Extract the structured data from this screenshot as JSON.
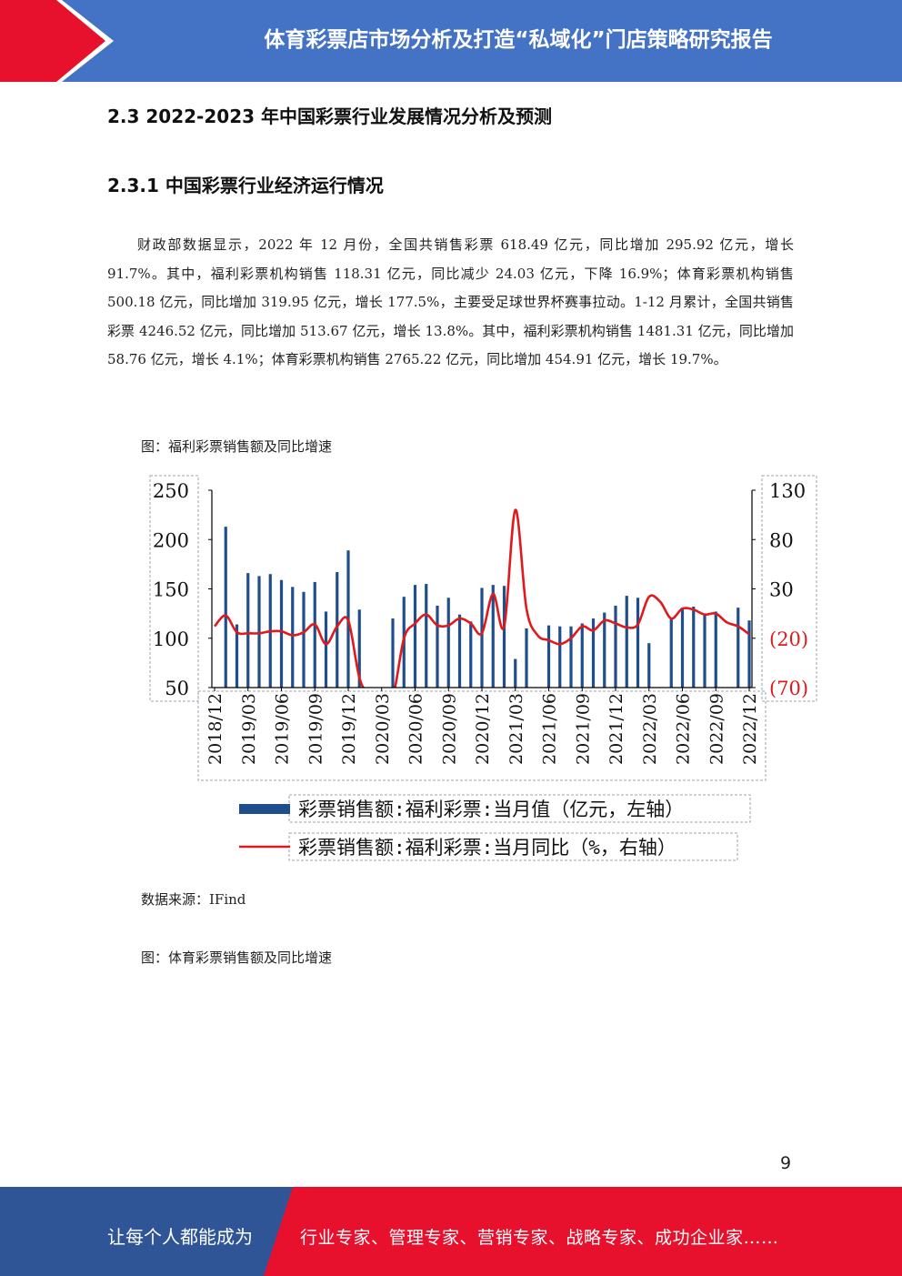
{
  "header": {
    "title": "体育彩票店市场分析及打造“私域化”门店策略研究报告"
  },
  "section": {
    "heading": "2.3 2022-2023 年中国彩票行业发展情况分析及预测"
  },
  "subsection": {
    "heading": "2.3.1 中国彩票行业经济运行情况"
  },
  "body": {
    "paragraph": "财政部数据显示，2022 年 12 月份，全国共销售彩票 618.49 亿元，同比增加 295.92 亿元，增长 91.7%。其中，福利彩票机构销售 118.31 亿元，同比减少 24.03 亿元，下降 16.9%；体育彩票机构销售 500.18 亿元，同比增加 319.95 亿元，增长 177.5%，主要受足球世界杯赛事拉动。1-12 月累计，全国共销售彩票 4246.52 亿元，同比增加 513.67 亿元，增长 13.8%。其中，福利彩票机构销售 1481.31 亿元，同比增加 58.76 亿元，增长 4.1%；体育彩票机构销售 2765.22 亿元，同比增加 454.91 亿元，增长 19.7%。"
  },
  "figure1": {
    "caption": "图：福利彩票销售额及同比增速",
    "source": "数据来源：IFind"
  },
  "figure2": {
    "caption": "图：体育彩票销售额及同比增速"
  },
  "page_number": "9",
  "footer": {
    "left": "让每个人都能成为",
    "right": "行业专家、管理专家、营销专家、战略专家、成功企业家……"
  },
  "colors": {
    "header_blue": "#4472c4",
    "accent_red": "#e8112d",
    "footer_blue": "#2f5597",
    "bar_blue": "#1f4e8c",
    "line_red": "#e0191d"
  },
  "chart_data": {
    "type": "bar",
    "title": "",
    "xlabel": "",
    "left_ylim": [
      50,
      250
    ],
    "right_ylim": [
      -70,
      130
    ],
    "left_ticks": [
      "250",
      "200",
      "150",
      "100",
      "50"
    ],
    "right_ticks": [
      "130",
      "80",
      "30",
      "(20)",
      "(70)"
    ],
    "x_tick_labels": [
      "2018/12",
      "2019/03",
      "2019/06",
      "2019/09",
      "2019/12",
      "2020/03",
      "2020/06",
      "2020/09",
      "2020/12",
      "2021/03",
      "2021/06",
      "2021/09",
      "2021/12",
      "2022/03",
      "2022/06",
      "2022/09",
      "2022/12"
    ],
    "categories": [
      "2018/12",
      "2019/01",
      "2019/02",
      "2019/03",
      "2019/04",
      "2019/05",
      "2019/06",
      "2019/07",
      "2019/08",
      "2019/09",
      "2019/10",
      "2019/11",
      "2019/12",
      "2020/01",
      "2020/02",
      "2020/03",
      "2020/04",
      "2020/05",
      "2020/06",
      "2020/07",
      "2020/08",
      "2020/09",
      "2020/10",
      "2020/11",
      "2020/12",
      "2021/01",
      "2021/02",
      "2021/03",
      "2021/04",
      "2021/05",
      "2021/06",
      "2021/07",
      "2021/08",
      "2021/09",
      "2021/10",
      "2021/11",
      "2021/12",
      "2022/01",
      "2022/02",
      "2022/03",
      "2022/04",
      "2022/05",
      "2022/06",
      "2022/07",
      "2022/08",
      "2022/09",
      "2022/10",
      "2022/11",
      "2022/12"
    ],
    "series": [
      {
        "name": "彩票销售额:福利彩票:当月值（亿元，左轴）",
        "axis": "left",
        "type": "bar",
        "values": [
          null,
          213,
          114,
          166,
          163,
          165,
          159,
          152,
          147,
          157,
          127,
          167,
          189,
          129,
          null,
          null,
          120,
          142,
          154,
          155,
          133,
          141,
          124,
          117,
          151,
          154,
          153,
          79,
          110,
          null,
          113,
          112,
          112,
          115,
          120,
          126,
          133,
          143,
          141,
          95,
          null,
          120,
          131,
          132,
          125,
          127,
          null,
          131,
          118
        ]
      },
      {
        "name": "彩票销售额:福利彩票:当月同比（%，右轴）",
        "axis": "right",
        "type": "line",
        "values": [
          -8,
          3,
          -14,
          -15,
          -15,
          -13,
          -13,
          -17,
          -14,
          -6,
          -26,
          -8,
          -2,
          -60,
          -100,
          -100,
          -80,
          -20,
          -5,
          4,
          -7,
          -7,
          0,
          -5,
          -15,
          25,
          -8,
          110,
          10,
          -17,
          -22,
          -26,
          -20,
          -8,
          -12,
          -2,
          -5,
          -9,
          -6,
          22,
          17,
          0,
          10,
          9,
          4,
          5,
          -4,
          -8,
          -16
        ]
      }
    ],
    "legend": [
      "彩票销售额:福利彩票:当月值（亿元，左轴）",
      "彩票销售额:福利彩票:当月同比（%，右轴）"
    ]
  }
}
